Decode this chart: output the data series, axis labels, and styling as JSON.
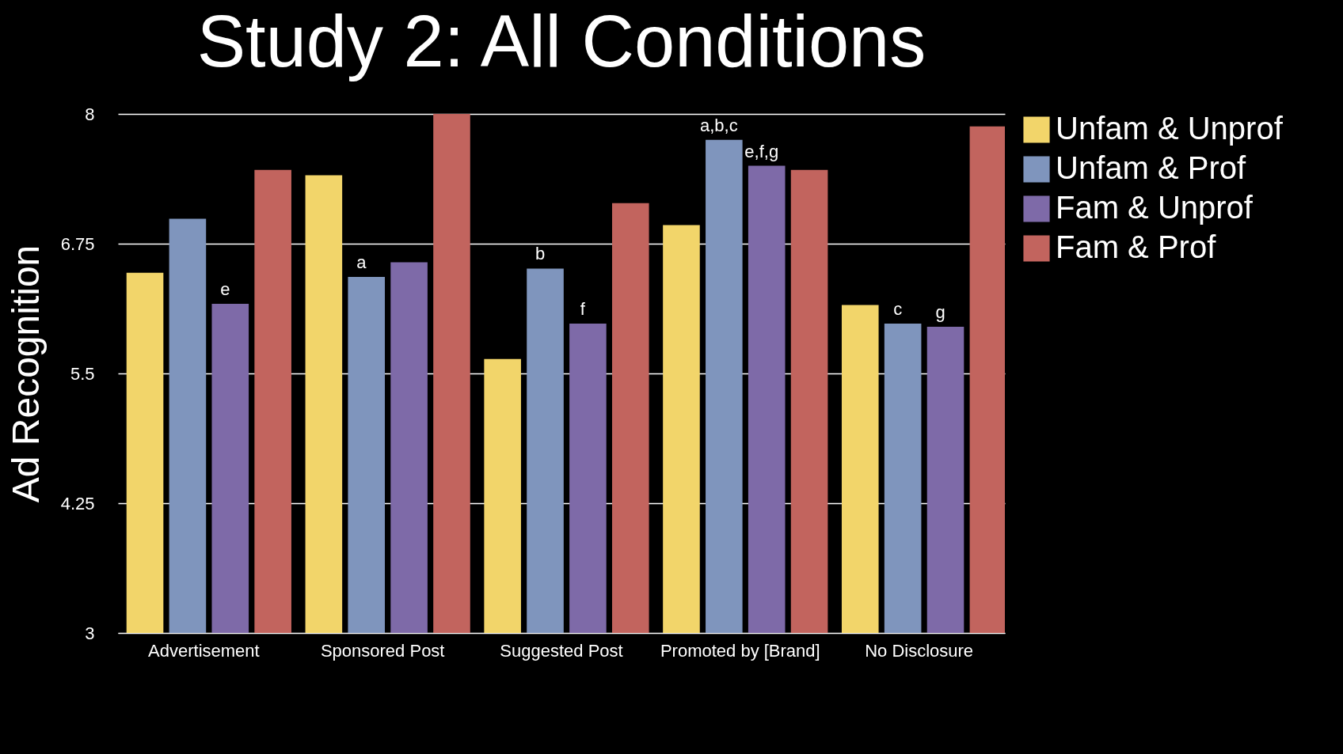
{
  "chart_data": {
    "type": "bar",
    "title": "Study 2: All Conditions",
    "ylabel": "Ad Recognition",
    "categories": [
      "Advertisement",
      "Sponsored Post",
      "Suggested Post",
      "Promoted by [Brand]",
      "No Disclosure"
    ],
    "series": [
      {
        "name": "Unfam & Unprof",
        "color": "#f2d56a",
        "values": [
          6.47,
          7.41,
          5.64,
          6.93,
          6.16
        ]
      },
      {
        "name": "Unfam & Prof",
        "color": "#7f95bd",
        "values": [
          6.99,
          6.43,
          6.51,
          7.75,
          5.98
        ]
      },
      {
        "name": "Fam & Unprof",
        "color": "#7e6aa8",
        "values": [
          6.17,
          6.57,
          5.98,
          7.5,
          5.95
        ]
      },
      {
        "name": "Fam & Prof",
        "color": "#c2645e",
        "values": [
          7.46,
          8.0,
          7.14,
          7.46,
          7.88
        ]
      }
    ],
    "ylim": [
      3,
      8
    ],
    "yticks": [
      3,
      4.25,
      5.5,
      6.75,
      8
    ],
    "grid": "y",
    "legend": "right",
    "annotations": [
      {
        "text": "e",
        "x": "Advertisement",
        "y": 6.17
      },
      {
        "text": "a",
        "x": "Sponsored Post",
        "y": 6.43
      },
      {
        "text": "b",
        "x": "Suggested Post",
        "y": 6.51
      },
      {
        "text": "f",
        "x": "Suggested Post",
        "y": 5.98
      },
      {
        "text": "a,b,c",
        "x": "Promoted by [Brand]",
        "y": 7.75
      },
      {
        "text": "e,f,g",
        "x": "Promoted by [Brand]",
        "y": 7.5
      },
      {
        "text": "c",
        "x": "No Disclosure",
        "y": 5.98
      },
      {
        "text": "g",
        "x": "No Disclosure",
        "y": 5.95
      }
    ]
  }
}
